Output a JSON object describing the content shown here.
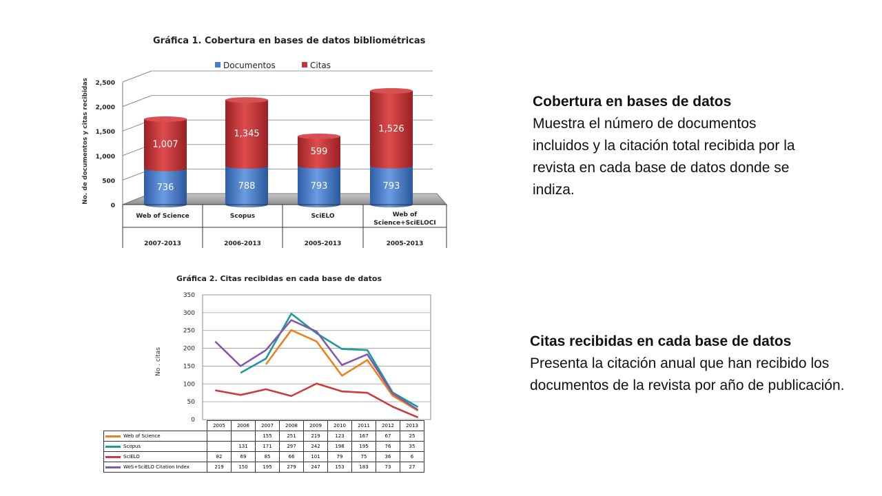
{
  "chart_data": [
    {
      "type": "bar",
      "stacked": true,
      "title": "Gráfica 1. Cobertura en bases de datos bibliométricas",
      "ylabel": "No. de documentos  y citas recibidas",
      "ylim": [
        0,
        2500
      ],
      "yticks": [
        "0",
        "500",
        "1,000",
        "1,500",
        "2,000",
        "2,500"
      ],
      "legend_position": "top",
      "categories": [
        "Web of  Science",
        "Scopus",
        "SciELO",
        "Web of Science+SciELOCI"
      ],
      "periods": [
        "2007-2013",
        "2006-2013",
        "2005-2013",
        "2005-2013"
      ],
      "series": [
        {
          "name": "Documentos",
          "color": "#4a7ec6",
          "values": [
            736,
            788,
            793,
            793
          ],
          "labels": [
            "736",
            "788",
            "793",
            "793"
          ]
        },
        {
          "name": "Citas",
          "color": "#c0383a",
          "values": [
            1007,
            1345,
            599,
            1526
          ],
          "labels": [
            "1,007",
            "1,345",
            "599",
            "1,526"
          ]
        }
      ]
    },
    {
      "type": "line",
      "title": "Gráfica 2. Citas recibidas en cada base de datos",
      "ylabel": "No .  citas",
      "ylim": [
        0,
        350
      ],
      "yticks": [
        "0",
        "50",
        "100",
        "150",
        "200",
        "250",
        "300",
        "350"
      ],
      "grid": true,
      "x": [
        "2005",
        "2006",
        "2007",
        "2008",
        "2009",
        "2010",
        "2011",
        "2012",
        "2013"
      ],
      "series": [
        {
          "name": "Web of Science",
          "color": "#e9821f",
          "values": [
            null,
            null,
            155,
            251,
            219,
            123,
            167,
            67,
            25
          ]
        },
        {
          "name": "Scopus",
          "color": "#1a9a98",
          "values": [
            null,
            131,
            171,
            297,
            242,
            198,
            195,
            76,
            35
          ]
        },
        {
          "name": "SciELO",
          "color": "#cc3b3b",
          "values": [
            82,
            69,
            85,
            66,
            101,
            79,
            75,
            36,
            6
          ]
        },
        {
          "name": "WoS+SciELO Citation  Index",
          "color": "#8258a8",
          "values": [
            219,
            150,
            195,
            279,
            247,
            153,
            183,
            73,
            27
          ]
        }
      ]
    }
  ],
  "text": {
    "coverage_heading": "Cobertura en bases de datos",
    "coverage_body": "Muestra el número de documentos incluidos y la citación total recibida por la revista en cada base de datos donde se indiza.",
    "citations_heading": "Citas recibidas en cada base de datos",
    "citations_body": "Presenta la citación anual que han recibido los documentos de la revista por año de publicación."
  }
}
